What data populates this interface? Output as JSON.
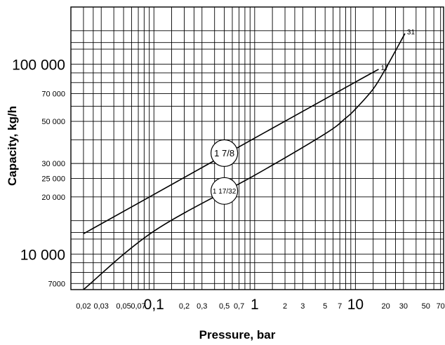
{
  "chart_data": {
    "type": "line",
    "title": "",
    "xlabel": "Pressure, bar",
    "ylabel": "Capacity, kg/h",
    "x_scale": "log",
    "y_scale": "log",
    "xlim": [
      0.015,
      75
    ],
    "ylim": [
      6500,
      200000
    ],
    "x_ticks": [
      {
        "value": 0.02,
        "label": "0,02",
        "size": "small"
      },
      {
        "value": 0.03,
        "label": "0,03",
        "size": "small"
      },
      {
        "value": 0.05,
        "label": "0,05",
        "size": "small"
      },
      {
        "value": 0.07,
        "label": "0,07",
        "size": "small"
      },
      {
        "value": 0.1,
        "label": "0,1",
        "size": "big"
      },
      {
        "value": 0.2,
        "label": "0,2",
        "size": "small"
      },
      {
        "value": 0.3,
        "label": "0,3",
        "size": "small"
      },
      {
        "value": 0.5,
        "label": "0,5",
        "size": "small"
      },
      {
        "value": 0.7,
        "label": "0,7",
        "size": "small"
      },
      {
        "value": 1,
        "label": "1",
        "size": "big"
      },
      {
        "value": 2,
        "label": "2",
        "size": "small"
      },
      {
        "value": 3,
        "label": "3",
        "size": "small"
      },
      {
        "value": 5,
        "label": "5",
        "size": "small"
      },
      {
        "value": 7,
        "label": "7",
        "size": "small"
      },
      {
        "value": 10,
        "label": "10",
        "size": "big"
      },
      {
        "value": 20,
        "label": "20",
        "size": "small"
      },
      {
        "value": 30,
        "label": "30",
        "size": "small"
      },
      {
        "value": 50,
        "label": "50",
        "size": "small"
      },
      {
        "value": 70,
        "label": "70",
        "size": "small"
      }
    ],
    "y_ticks": [
      {
        "value": 7000,
        "label": "7000",
        "size": "small"
      },
      {
        "value": 10000,
        "label": "10 000",
        "size": "big"
      },
      {
        "value": 20000,
        "label": "20 000",
        "size": "small"
      },
      {
        "value": 25000,
        "label": "25 000",
        "size": "small"
      },
      {
        "value": 30000,
        "label": "30 000",
        "size": "small"
      },
      {
        "value": 50000,
        "label": "50 000",
        "size": "small"
      },
      {
        "value": 70000,
        "label": "70 000",
        "size": "small"
      },
      {
        "value": 100000,
        "label": "100 000",
        "size": "big"
      }
    ],
    "x_gridlines": [
      0.015,
      0.02,
      0.025,
      0.03,
      0.04,
      0.05,
      0.06,
      0.07,
      0.08,
      0.09,
      0.1,
      0.15,
      0.2,
      0.25,
      0.3,
      0.4,
      0.5,
      0.6,
      0.7,
      0.8,
      0.9,
      1,
      1.5,
      2,
      2.5,
      3,
      4,
      5,
      6,
      7,
      8,
      9,
      10,
      15,
      20,
      25,
      30,
      40,
      50,
      60,
      70,
      75
    ],
    "y_gridlines": [
      6500,
      7000,
      8000,
      9000,
      10000,
      12000,
      13000,
      15000,
      20000,
      25000,
      30000,
      40000,
      50000,
      60000,
      70000,
      80000,
      90000,
      100000,
      120000,
      130000,
      150000,
      200000
    ],
    "grid": true,
    "series": [
      {
        "name": "1 7/8",
        "end_label": "17",
        "x": [
          0.02,
          0.1,
          1,
          10,
          17
        ],
        "y": [
          12800,
          20600,
          40800,
          80500,
          94000
        ]
      },
      {
        "name": "1 17/32",
        "end_label": "31",
        "x": [
          0.02,
          0.1,
          1,
          5,
          8,
          10,
          15,
          20,
          31
        ],
        "y": [
          6500,
          13200,
          26000,
          43000,
          52000,
          58000,
          74000,
          95000,
          145000
        ]
      }
    ],
    "series_labels": [
      {
        "text": "1 7/8",
        "x": 0.5,
        "y": 34000
      },
      {
        "text": "1 17/32",
        "x": 0.5,
        "y": 21500
      }
    ]
  }
}
